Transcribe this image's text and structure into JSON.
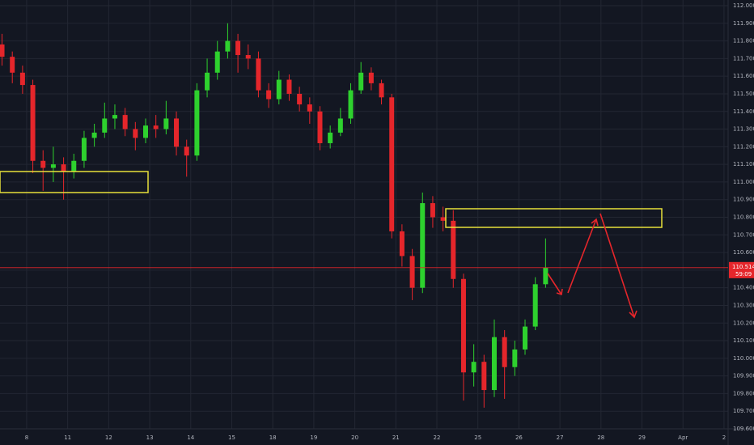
{
  "chart_data": {
    "type": "candlestick",
    "x": [
      -0.6,
      -0.35,
      -0.1,
      0.15,
      0.4,
      0.65,
      0.9,
      1.15,
      1.4,
      1.65,
      1.9,
      2.15,
      2.4,
      2.65,
      2.9,
      3.15,
      3.4,
      3.65,
      3.9,
      4.15,
      4.4,
      4.65,
      4.9,
      5.15,
      5.4,
      5.65,
      5.9,
      6.15,
      6.4,
      6.65,
      6.9,
      7.15,
      7.4,
      7.65,
      7.9,
      8.15,
      8.4,
      8.65,
      8.9,
      9.15,
      9.4,
      9.65,
      9.9,
      10.15,
      10.4,
      10.65,
      10.9,
      11.15,
      11.4,
      11.65,
      11.9,
      12.15,
      12.4,
      12.65
    ],
    "open": [
      111.78,
      111.71,
      111.62,
      111.55,
      111.12,
      111.08,
      111.1,
      111.06,
      111.12,
      111.25,
      111.28,
      111.36,
      111.38,
      111.3,
      111.25,
      111.32,
      111.3,
      111.36,
      111.2,
      111.15,
      111.52,
      111.62,
      111.74,
      111.8,
      111.72,
      111.7,
      111.52,
      111.47,
      111.58,
      111.5,
      111.44,
      111.4,
      111.22,
      111.28,
      111.36,
      111.52,
      111.62,
      111.56,
      111.48,
      110.72,
      110.58,
      110.4,
      110.88,
      110.8,
      110.78,
      110.45,
      109.92,
      109.98,
      109.82,
      110.12,
      109.95,
      110.05,
      110.18,
      110.42
    ],
    "high": [
      111.84,
      111.74,
      111.66,
      111.58,
      111.18,
      111.2,
      111.14,
      111.16,
      111.29,
      111.33,
      111.45,
      111.44,
      111.42,
      111.34,
      111.36,
      111.38,
      111.46,
      111.4,
      111.24,
      111.56,
      111.7,
      111.8,
      111.9,
      111.84,
      111.78,
      111.74,
      111.56,
      111.63,
      111.61,
      111.54,
      111.48,
      111.43,
      111.32,
      111.42,
      111.56,
      111.68,
      111.65,
      111.58,
      111.5,
      110.76,
      110.62,
      110.94,
      110.92,
      110.86,
      110.84,
      110.48,
      110.08,
      110.02,
      110.22,
      110.16,
      110.1,
      110.22,
      110.46,
      110.68
    ],
    "low": [
      111.66,
      111.56,
      111.5,
      111.05,
      110.95,
      111.0,
      110.9,
      111.02,
      111.08,
      111.2,
      111.25,
      111.3,
      111.26,
      111.18,
      111.22,
      111.25,
      111.27,
      111.15,
      111.03,
      111.12,
      111.48,
      111.58,
      111.7,
      111.62,
      111.64,
      111.48,
      111.42,
      111.44,
      111.46,
      111.4,
      111.33,
      111.18,
      111.19,
      111.26,
      111.33,
      111.5,
      111.52,
      111.44,
      110.68,
      110.52,
      110.33,
      110.37,
      110.74,
      110.72,
      110.4,
      109.76,
      109.84,
      109.72,
      109.78,
      109.77,
      109.9,
      110.02,
      110.16,
      110.4
    ],
    "close": [
      111.71,
      111.62,
      111.55,
      111.12,
      111.08,
      111.1,
      111.06,
      111.12,
      111.25,
      111.28,
      111.36,
      111.38,
      111.3,
      111.25,
      111.32,
      111.3,
      111.36,
      111.2,
      111.15,
      111.52,
      111.62,
      111.74,
      111.8,
      111.72,
      111.7,
      111.52,
      111.47,
      111.58,
      111.5,
      111.44,
      111.4,
      111.22,
      111.28,
      111.36,
      111.52,
      111.62,
      111.56,
      111.48,
      110.72,
      110.58,
      110.4,
      110.88,
      110.8,
      110.78,
      110.45,
      109.92,
      109.98,
      109.82,
      110.12,
      109.95,
      110.05,
      110.18,
      110.42,
      110.514
    ],
    "up_color": "#2ed12e",
    "down_color": "#e5262b",
    "xlim": [
      -0.65,
      17.1
    ],
    "xticks": [
      {
        "value": 0,
        "label": "8"
      },
      {
        "value": 1,
        "label": "11"
      },
      {
        "value": 2,
        "label": "12"
      },
      {
        "value": 3,
        "label": "13"
      },
      {
        "value": 4,
        "label": "14"
      },
      {
        "value": 5,
        "label": "15"
      },
      {
        "value": 6,
        "label": "18"
      },
      {
        "value": 7,
        "label": "19"
      },
      {
        "value": 8,
        "label": "20"
      },
      {
        "value": 9,
        "label": "21"
      },
      {
        "value": 10,
        "label": "22"
      },
      {
        "value": 11,
        "label": "25"
      },
      {
        "value": 12,
        "label": "26"
      },
      {
        "value": 13,
        "label": "27"
      },
      {
        "value": 14,
        "label": "28"
      },
      {
        "value": 15,
        "label": "29"
      },
      {
        "value": 16,
        "label": "Apr"
      },
      {
        "value": 17,
        "label": "2"
      }
    ],
    "ylim": [
      109.6,
      112.0
    ],
    "yticks": [
      {
        "value": 109.6,
        "label": "109.600"
      },
      {
        "value": 109.7,
        "label": "109.700"
      },
      {
        "value": 109.8,
        "label": "109.800"
      },
      {
        "value": 109.9,
        "label": "109.900"
      },
      {
        "value": 110.0,
        "label": "110.000"
      },
      {
        "value": 110.1,
        "label": "110.100"
      },
      {
        "value": 110.2,
        "label": "110.200"
      },
      {
        "value": 110.3,
        "label": "110.300"
      },
      {
        "value": 110.4,
        "label": "110.400"
      },
      {
        "value": 110.5,
        "label": "110.500"
      },
      {
        "value": 110.6,
        "label": "110.600"
      },
      {
        "value": 110.7,
        "label": "110.700"
      },
      {
        "value": 110.8,
        "label": "110.800"
      },
      {
        "value": 110.9,
        "label": "110.900"
      },
      {
        "value": 111.0,
        "label": "111.000"
      },
      {
        "value": 111.1,
        "label": "111.100"
      },
      {
        "value": 111.2,
        "label": "111.200"
      },
      {
        "value": 111.3,
        "label": "111.300"
      },
      {
        "value": 111.4,
        "label": "111.400"
      },
      {
        "value": 111.5,
        "label": "111.500"
      },
      {
        "value": 111.6,
        "label": "111.600"
      },
      {
        "value": 111.7,
        "label": "111.700"
      },
      {
        "value": 111.8,
        "label": "111.800"
      },
      {
        "value": 111.9,
        "label": "111.900"
      },
      {
        "value": 112.0,
        "label": "112.000"
      }
    ],
    "grid": true,
    "last_price": {
      "value": 110.514,
      "label": "110.514"
    },
    "countdown": "59:09"
  }
}
